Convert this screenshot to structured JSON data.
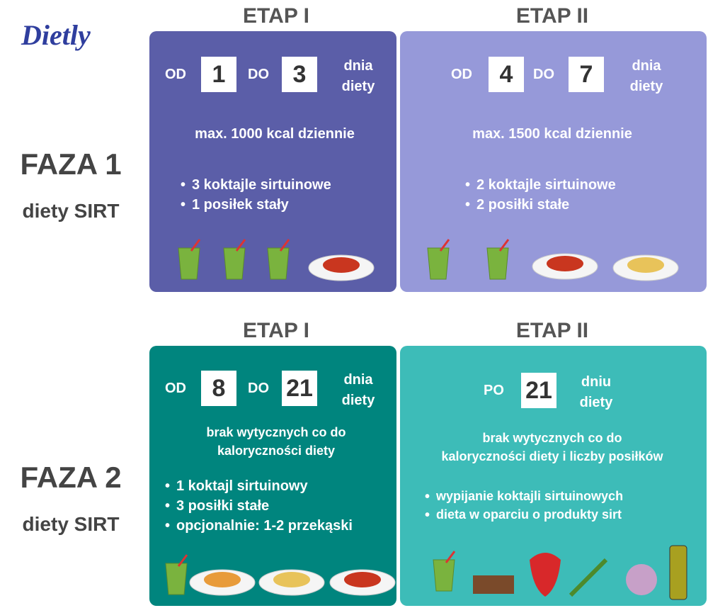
{
  "logo": "Dietly",
  "phases": [
    {
      "title": "FAZA 1",
      "subtitle": "diety SIRT",
      "stages": [
        {
          "header": "ETAP I",
          "from_label": "OD",
          "from": 1,
          "to_label": "DO",
          "to": 3,
          "day_lines": [
            "dnia",
            "diety"
          ],
          "text": [
            "max. 1000 kcal dziennie"
          ],
          "bullets": [
            "3 koktajle sirtuinowe",
            "1 posiłek stały"
          ]
        },
        {
          "header": "ETAP II",
          "from_label": "OD",
          "from": 4,
          "to_label": "DO",
          "to": 7,
          "day_lines": [
            "dnia",
            "diety"
          ],
          "text": [
            "max. 1500 kcal dziennie"
          ],
          "bullets": [
            "2 koktajle sirtuinowe",
            "2 posiłki stałe"
          ]
        }
      ]
    },
    {
      "title": "FAZA 2",
      "subtitle": "diety SIRT",
      "stages": [
        {
          "header": "ETAP I",
          "from_label": "OD",
          "from": 8,
          "to_label": "DO",
          "to": 21,
          "day_lines": [
            "dnia",
            "diety"
          ],
          "text": [
            "brak wytycznych co do",
            "kaloryczności diety"
          ],
          "bullets": [
            "1 koktajl sirtuinowy",
            "3 posiłki stałe",
            "opcjonalnie: 1-2 przekąski"
          ]
        },
        {
          "header": "ETAP II",
          "from_label": "PO",
          "from": 21,
          "day_lines": [
            "dniu",
            "diety"
          ],
          "text": [
            "brak wytycznych co do",
            "kaloryczności diety i liczby posiłków"
          ],
          "bullets": [
            "wypijanie koktajli sirtuinowych",
            "dieta w oparciu o produkty sirt"
          ]
        }
      ]
    }
  ]
}
